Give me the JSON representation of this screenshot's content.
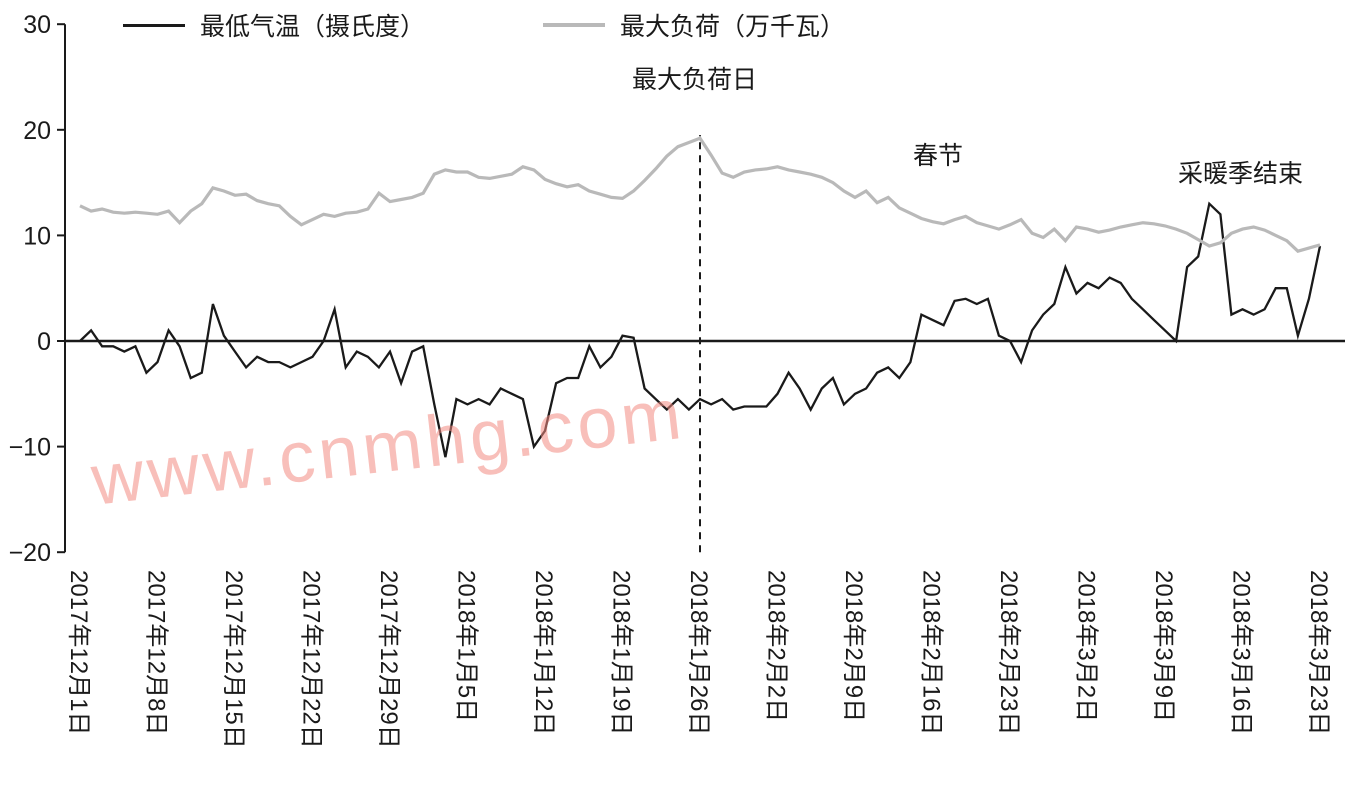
{
  "watermark": "www.cnmhg.com",
  "legend": {
    "items": [
      {
        "label": "最低气温（摄氏度）",
        "color": "#1a1a1a"
      },
      {
        "label": "最大负荷（万千瓦）",
        "color": "#b9b9b9"
      }
    ]
  },
  "annotations": {
    "max_load_day": "最大负荷日",
    "spring_festival": "春节",
    "heating_end": "采暖季结束"
  },
  "chart_data": {
    "type": "line",
    "frequency": "daily",
    "start_date": "2017-12-01",
    "end_date": "2018-03-23",
    "ylim": [
      -20,
      30
    ],
    "yticks": [
      30,
      20,
      10,
      0,
      -10,
      -20
    ],
    "grid": false,
    "legend_position": "top",
    "x_tick_labels": [
      "2017年12月1日",
      "2017年12月8日",
      "2017年12月15日",
      "2017年12月22日",
      "2017年12月29日",
      "2018年1月5日",
      "2018年1月12日",
      "2018年1月19日",
      "2018年1月26日",
      "2018年2月2日",
      "2018年2月9日",
      "2018年2月16日",
      "2018年2月23日",
      "2018年3月2日",
      "2018年3月9日",
      "2018年3月16日",
      "2018年3月23日"
    ],
    "x_tick_day_indices": [
      0,
      7,
      14,
      21,
      28,
      35,
      42,
      49,
      56,
      63,
      70,
      77,
      84,
      91,
      98,
      105,
      112
    ],
    "vline": {
      "day_index": 56,
      "date_label": "2018年1月26日",
      "label": "最大负荷日",
      "style": "dashed"
    },
    "annotations": [
      {
        "text": "春节",
        "day_index": 79,
        "y": 18
      },
      {
        "text": "采暖季结束",
        "day_index": 106,
        "y": 16.5
      }
    ],
    "series": [
      {
        "name": "最低气温（摄氏度）",
        "color": "#1a1a1a",
        "values": [
          0,
          1,
          -0.5,
          -0.5,
          -1,
          -0.5,
          -3,
          -2,
          1,
          -0.5,
          -3.5,
          -3,
          3.5,
          0.5,
          -1,
          -2.5,
          -1.5,
          -2,
          -2,
          -2.5,
          -2,
          -1.5,
          0,
          3,
          -2.5,
          -1,
          -1.5,
          -2.5,
          -1,
          -4,
          -1,
          -0.5,
          -6,
          -11,
          -5.5,
          -6,
          -5.5,
          -6,
          -4.5,
          -5,
          -5.5,
          -10,
          -8.5,
          -4,
          -3.5,
          -3.5,
          -0.5,
          -2.5,
          -1.5,
          0.5,
          0.3,
          -4.5,
          -5.5,
          -6.5,
          -5.5,
          -6.5,
          -5.5,
          -6,
          -5.5,
          -6.5,
          -6.2,
          -6.2,
          -6.2,
          -5,
          -3,
          -4.5,
          -6.5,
          -4.5,
          -3.5,
          -6,
          -5,
          -4.5,
          -3,
          -2.5,
          -3.5,
          -2,
          2.5,
          2,
          1.5,
          3.8,
          4,
          3.5,
          4,
          0.5,
          0,
          -2,
          1,
          2.5,
          3.5,
          7,
          4.5,
          5.5,
          5,
          6,
          5.5,
          4,
          3,
          2,
          1,
          0,
          7,
          8,
          13,
          12,
          2.5,
          3,
          2.5,
          3,
          5,
          5,
          0.5,
          4,
          9
        ]
      },
      {
        "name": "最大负荷（万千瓦）",
        "color": "#b9b9b9",
        "values": [
          12.8,
          12.3,
          12.5,
          12.2,
          12.1,
          12.2,
          12.1,
          12.0,
          12.3,
          11.2,
          12.3,
          13.0,
          14.5,
          14.2,
          13.8,
          13.9,
          13.3,
          13.0,
          12.8,
          11.8,
          11.0,
          11.5,
          12.0,
          11.8,
          12.1,
          12.2,
          12.5,
          14.0,
          13.2,
          13.4,
          13.6,
          14.0,
          15.8,
          16.2,
          16.0,
          16.0,
          15.5,
          15.4,
          15.6,
          15.8,
          16.5,
          16.2,
          15.3,
          14.9,
          14.6,
          14.8,
          14.2,
          13.9,
          13.6,
          13.5,
          14.2,
          15.2,
          16.3,
          17.5,
          18.4,
          18.8,
          19.2,
          17.6,
          15.9,
          15.5,
          16.0,
          16.2,
          16.3,
          16.5,
          16.2,
          16.0,
          15.8,
          15.5,
          15.0,
          14.2,
          13.6,
          14.2,
          13.1,
          13.6,
          12.6,
          12.1,
          11.6,
          11.3,
          11.1,
          11.5,
          11.8,
          11.2,
          10.9,
          10.6,
          11.0,
          11.5,
          10.2,
          9.8,
          10.6,
          9.5,
          10.8,
          10.6,
          10.3,
          10.5,
          10.8,
          11.0,
          11.2,
          11.1,
          10.9,
          10.6,
          10.2,
          9.6,
          9.0,
          9.3,
          10.2,
          10.6,
          10.8,
          10.5,
          10.0,
          9.5,
          8.5,
          8.8,
          9.1
        ]
      }
    ]
  }
}
